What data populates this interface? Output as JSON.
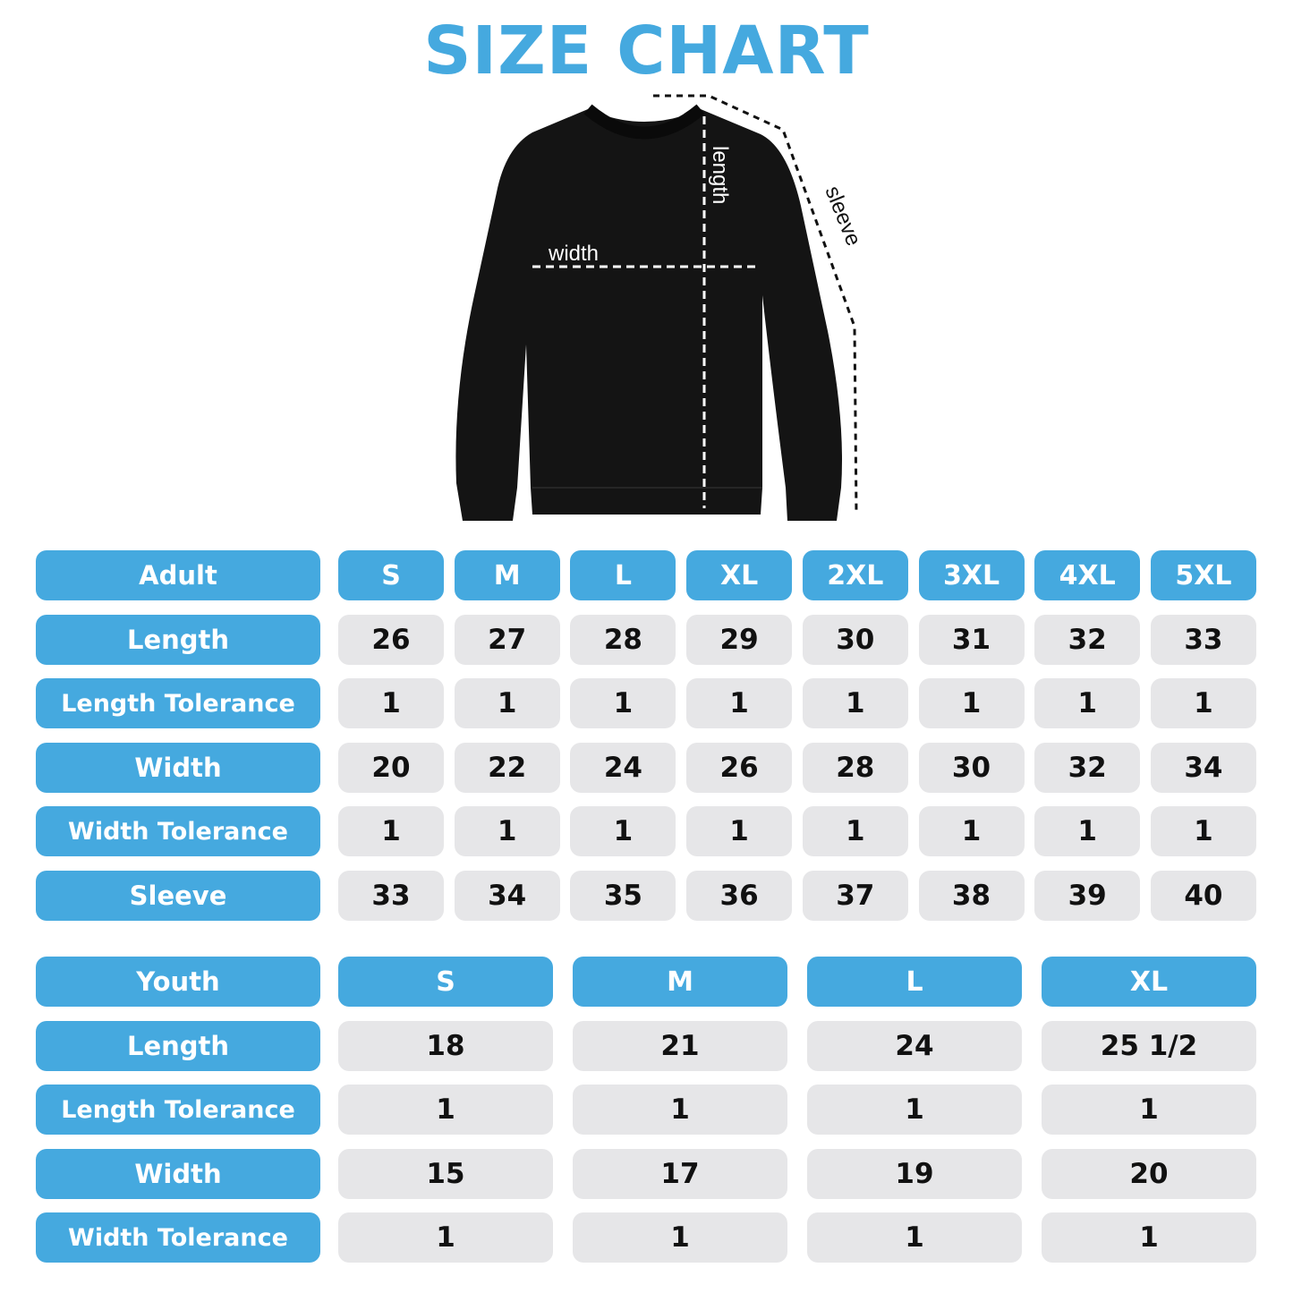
{
  "title": "SIZE CHART",
  "colors": {
    "accent": "#45a9df",
    "value_cell": "#e6e6e8",
    "garment": "#141414"
  },
  "diagram": {
    "width_label": "width",
    "length_label": "length",
    "sleeve_label": "sleeve"
  },
  "adult": {
    "header": "Adult",
    "sizes": [
      "S",
      "M",
      "L",
      "XL",
      "2XL",
      "3XL",
      "4XL",
      "5XL"
    ],
    "rows": [
      {
        "label": "Length",
        "values": [
          "26",
          "27",
          "28",
          "29",
          "30",
          "31",
          "32",
          "33"
        ]
      },
      {
        "label": "Length Tolerance",
        "values": [
          "1",
          "1",
          "1",
          "1",
          "1",
          "1",
          "1",
          "1"
        ]
      },
      {
        "label": "Width",
        "values": [
          "20",
          "22",
          "24",
          "26",
          "28",
          "30",
          "32",
          "34"
        ]
      },
      {
        "label": "Width Tolerance",
        "values": [
          "1",
          "1",
          "1",
          "1",
          "1",
          "1",
          "1",
          "1"
        ]
      },
      {
        "label": "Sleeve",
        "values": [
          "33",
          "34",
          "35",
          "36",
          "37",
          "38",
          "39",
          "40"
        ]
      }
    ]
  },
  "youth": {
    "header": "Youth",
    "sizes": [
      "S",
      "M",
      "L",
      "XL"
    ],
    "rows": [
      {
        "label": "Length",
        "values": [
          "18",
          "21",
          "24",
          "25 1/2"
        ]
      },
      {
        "label": "Length Tolerance",
        "values": [
          "1",
          "1",
          "1",
          "1"
        ]
      },
      {
        "label": "Width",
        "values": [
          "15",
          "17",
          "19",
          "20"
        ]
      },
      {
        "label": "Width Tolerance",
        "values": [
          "1",
          "1",
          "1",
          "1"
        ]
      }
    ]
  }
}
